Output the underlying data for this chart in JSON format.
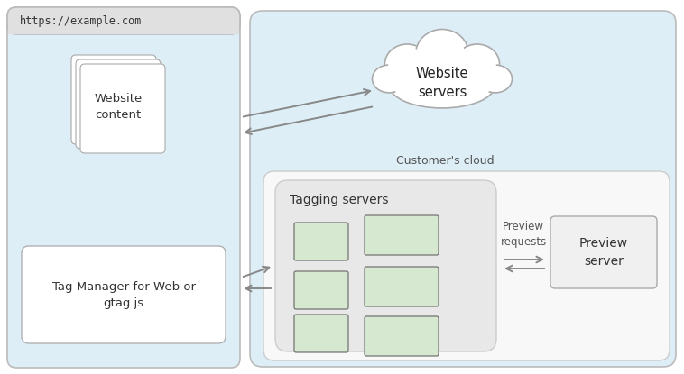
{
  "bg_color": "#ffffff",
  "browser_bg": "#ddeef7",
  "browser_border": "#bbbbbb",
  "browser_bar_color": "#e0e0e0",
  "browser_url": "https://example.com",
  "customer_cloud_bg": "#ddeef7",
  "customer_cloud_label": "Customer's cloud",
  "inner_bg": "#f8f8f8",
  "tagging_bg": "#e8e8e8",
  "tagging_label": "Tagging servers",
  "preview_server_label": "Preview\nserver",
  "preview_requests_label": "Preview\nrequests",
  "website_servers_label": "Website\nservers",
  "website_content_label": "Website\ncontent",
  "tagmanager_label": "Tag Manager for Web or\ngtag.js",
  "arrow_color": "#888888",
  "green_box_color": "#d6e8d0",
  "green_box_border": "#666666",
  "page_color": "#ffffff",
  "page_border": "#aaaaaa"
}
